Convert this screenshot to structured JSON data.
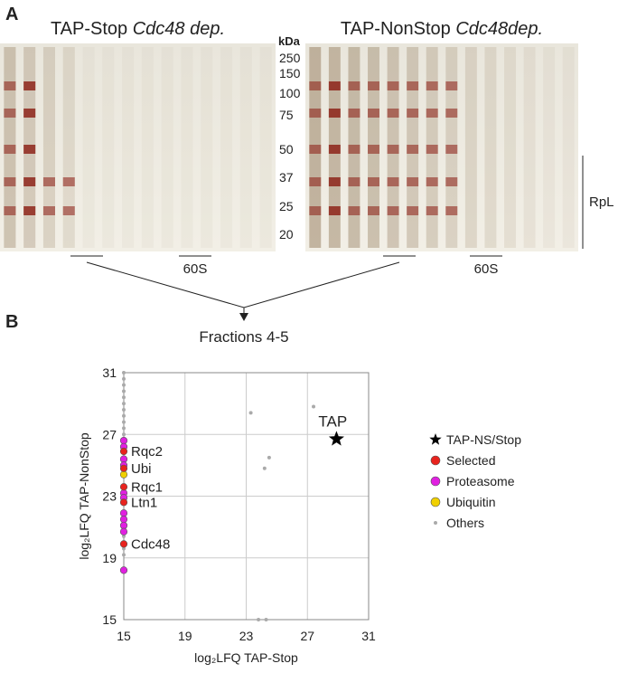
{
  "panels": {
    "a": "A",
    "b": "B"
  },
  "gels": [
    {
      "title": "TAP-Stop",
      "title_italic": "Cdc48 dep.",
      "fraction_label": "60S"
    },
    {
      "title": "TAP-NonStop",
      "title_italic": "Cdc48dep.",
      "fraction_label": "60S"
    }
  ],
  "marker_unit": "kDa",
  "markers": [
    250,
    150,
    100,
    75,
    50,
    37,
    25,
    20
  ],
  "bracket_label": "RpL",
  "arrow_label": "Fractions 4-5",
  "chart_data": {
    "type": "scatter",
    "x_label": "log₂LFQ TAP-Stop",
    "y_label": "log₂LFQ TAP-NonStop",
    "xlim": [
      15,
      31
    ],
    "ylim": [
      15,
      31
    ],
    "xticks": [
      15,
      19,
      23,
      27,
      31
    ],
    "yticks": [
      15,
      19,
      23,
      27,
      31
    ],
    "grid": true,
    "series": [
      {
        "name": "Others",
        "color": "#aaaaaa",
        "marker": "dot",
        "x": [
          15,
          15,
          15,
          15,
          15,
          15,
          15,
          15,
          15,
          15,
          15,
          15,
          15,
          15,
          15,
          15,
          24.5,
          24.2,
          23.3,
          27.4,
          23.8,
          24.3
        ],
        "values": [
          31,
          30.6,
          30.2,
          29.8,
          29.4,
          29,
          28.6,
          28.2,
          27.8,
          27.4,
          27,
          26.6,
          21,
          20.4,
          19.6,
          19.2,
          25.5,
          24.8,
          28.4,
          28.8,
          15,
          15
        ]
      },
      {
        "name": "Proteasome",
        "color": "#e020e0",
        "marker": "circle",
        "x": [
          15,
          15,
          15,
          15,
          15,
          15,
          15,
          15,
          15,
          15,
          15
        ],
        "values": [
          26.6,
          26.2,
          25.4,
          25,
          23.2,
          22.9,
          21.9,
          21.5,
          21.1,
          20.7,
          18.2
        ]
      },
      {
        "name": "Ubiquitin",
        "color": "#f0d000",
        "marker": "circle",
        "x": [
          15
        ],
        "values": [
          24.4
        ]
      },
      {
        "name": "Selected",
        "color": "#e8231e",
        "marker": "circle",
        "x": [
          15,
          15,
          15,
          15,
          15
        ],
        "values": [
          25.9,
          24.8,
          23.6,
          22.6,
          19.9
        ],
        "point_labels": [
          "Rqc2",
          "Ubi",
          "Rqc1",
          "Ltn1",
          "Cdc48"
        ]
      },
      {
        "name": "TAP-NS/Stop",
        "color": "#000000",
        "marker": "star",
        "x": [
          28.9
        ],
        "values": [
          26.7
        ],
        "point_labels": [
          "TAP"
        ]
      }
    ],
    "legend_order": [
      4,
      3,
      1,
      2,
      0
    ]
  }
}
